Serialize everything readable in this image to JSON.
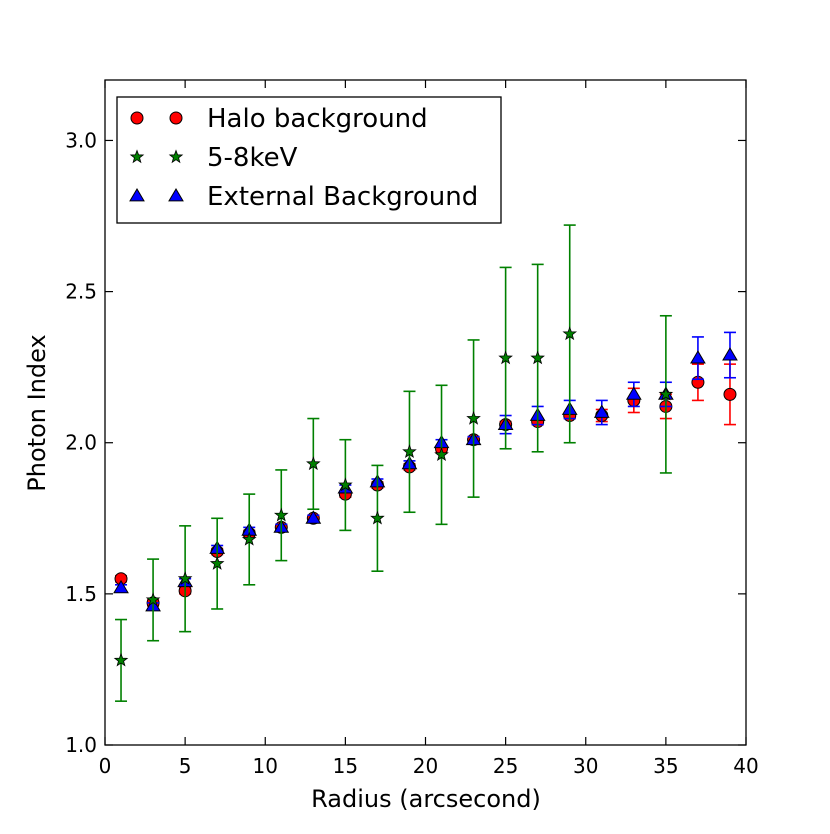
{
  "chart_data": {
    "type": "scatter",
    "title": "",
    "xlabel": "Radius (arcsecond)",
    "ylabel": "Photon Index",
    "xlim": [
      0,
      40
    ],
    "ylim": [
      1.0,
      3.2
    ],
    "xticks": [
      0,
      5,
      10,
      15,
      20,
      25,
      30,
      35,
      40
    ],
    "xtick_labels": [
      "0",
      "5",
      "10",
      "15",
      "20",
      "25",
      "30",
      "35",
      "40"
    ],
    "yticks": [
      1.0,
      1.5,
      2.0,
      2.5,
      3.0
    ],
    "ytick_labels": [
      "1.0",
      "1.5",
      "2.0",
      "2.5",
      "3.0"
    ],
    "grid": false,
    "legend_position": "top-left",
    "series": [
      {
        "name": "Halo background",
        "marker": "circle",
        "color": "#ff0000",
        "x": [
          1,
          3,
          5,
          7,
          9,
          11,
          13,
          15,
          17,
          19,
          21,
          23,
          25,
          27,
          29,
          31,
          33,
          35,
          37,
          39
        ],
        "y": [
          1.55,
          1.47,
          1.51,
          1.64,
          1.7,
          1.72,
          1.75,
          1.83,
          1.86,
          1.92,
          1.98,
          2.01,
          2.06,
          2.07,
          2.09,
          2.09,
          2.14,
          2.12,
          2.2,
          2.16
        ],
        "err": [
          0.01,
          0.01,
          0.01,
          0.01,
          0.01,
          0.01,
          0.01,
          0.01,
          0.01,
          0.01,
          0.01,
          0.01,
          0.01,
          0.01,
          0.01,
          0.02,
          0.04,
          0.04,
          0.06,
          0.1
        ]
      },
      {
        "name": "5-8keV",
        "marker": "star",
        "color": "#008000",
        "x": [
          1,
          3,
          5,
          7,
          9,
          11,
          13,
          15,
          17,
          19,
          21,
          23,
          25,
          27,
          29,
          35
        ],
        "y": [
          1.28,
          1.48,
          1.55,
          1.6,
          1.68,
          1.76,
          1.93,
          1.86,
          1.75,
          1.97,
          1.96,
          2.08,
          2.28,
          2.28,
          2.36,
          2.16
        ],
        "err": [
          0.135,
          0.135,
          0.175,
          0.15,
          0.15,
          0.15,
          0.15,
          0.15,
          0.175,
          0.2,
          0.23,
          0.26,
          0.3,
          0.31,
          0.36,
          0.26
        ]
      },
      {
        "name": "External Background",
        "marker": "triangle",
        "color": "#0000ff",
        "x": [
          1,
          3,
          5,
          7,
          9,
          11,
          13,
          15,
          17,
          19,
          21,
          23,
          25,
          27,
          29,
          31,
          33,
          35,
          37,
          39
        ],
        "y": [
          1.52,
          1.46,
          1.54,
          1.65,
          1.71,
          1.72,
          1.75,
          1.85,
          1.87,
          1.93,
          2.0,
          2.01,
          2.06,
          2.09,
          2.11,
          2.1,
          2.16,
          2.16,
          2.28,
          2.29
        ],
        "err": [
          0.01,
          0.01,
          0.01,
          0.01,
          0.01,
          0.01,
          0.01,
          0.01,
          0.01,
          0.01,
          0.01,
          0.01,
          0.03,
          0.03,
          0.03,
          0.04,
          0.04,
          0.04,
          0.07,
          0.075
        ]
      }
    ]
  }
}
